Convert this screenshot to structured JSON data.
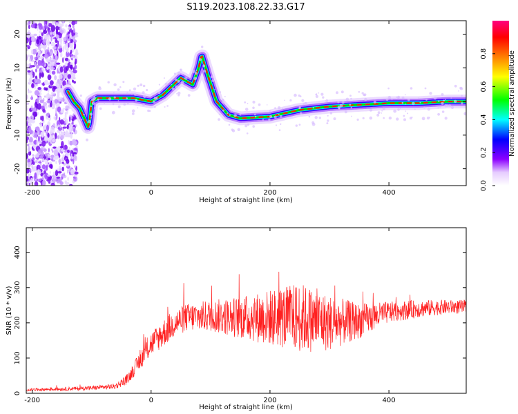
{
  "chart_data": [
    {
      "type": "heatmap",
      "title": "S119.2023.108.22.33.G17",
      "xlabel": "Height of straight line (km)",
      "ylabel": "Frequency (Hz)",
      "xlim": [
        -210,
        530
      ],
      "ylim": [
        -25,
        24
      ],
      "x_ticks": [
        -200,
        0,
        200,
        400
      ],
      "y_ticks": [
        -20,
        -10,
        0,
        10,
        20
      ],
      "colorbar": {
        "label": "Normalized spectral amplitude",
        "range": [
          0,
          1
        ],
        "ticks": [
          "0.0",
          "0.2",
          "0.4",
          "0.6",
          "0.8"
        ],
        "colors": [
          "#ffffff",
          "#e6ccff",
          "#8c00ff",
          "#0000ff",
          "#00ffff",
          "#00ff00",
          "#ffff00",
          "#ff8000",
          "#ff0000",
          "#ff0080"
        ]
      },
      "ridge": {
        "x": [
          -140,
          -130,
          -120,
          -110,
          -105,
          -100,
          -90,
          -60,
          -30,
          0,
          20,
          50,
          60,
          70,
          80,
          85,
          95,
          110,
          130,
          150,
          200,
          250,
          300,
          350,
          400,
          450,
          500,
          530
        ],
        "frequency": [
          3,
          0,
          -2,
          -6,
          -8,
          0,
          1,
          1,
          1,
          0,
          2,
          7,
          6,
          5,
          10,
          14,
          8,
          0,
          -4,
          -5,
          -4.5,
          -2.5,
          -1.5,
          -1,
          -0.5,
          -0.5,
          0,
          0
        ]
      },
      "noise_region": [
        -210,
        -125
      ]
    },
    {
      "type": "line",
      "title": "",
      "xlabel": "Height of straight line (km)",
      "ylabel": "SNR (10 * v/v)",
      "xlim": [
        -210,
        530
      ],
      "ylim": [
        0,
        470
      ],
      "x_ticks": [
        -200,
        0,
        200,
        400
      ],
      "y_ticks": [
        0,
        100,
        200,
        300,
        400
      ],
      "line_color": "#ff2020",
      "series": [
        {
          "name": "",
          "x": [
            -210,
            -150,
            -100,
            -60,
            -40,
            -20,
            0,
            20,
            40,
            60,
            100,
            150,
            200,
            250,
            300,
            350,
            400,
            450,
            500,
            530
          ],
          "values": [
            10,
            12,
            15,
            20,
            40,
            90,
            140,
            170,
            200,
            215,
            220,
            215,
            215,
            215,
            200,
            205,
            230,
            240,
            245,
            245
          ],
          "noise_amplitude": [
            4,
            5,
            6,
            8,
            15,
            25,
            35,
            40,
            40,
            40,
            45,
            60,
            80,
            100,
            80,
            50,
            30,
            25,
            20,
            20
          ]
        }
      ]
    }
  ]
}
